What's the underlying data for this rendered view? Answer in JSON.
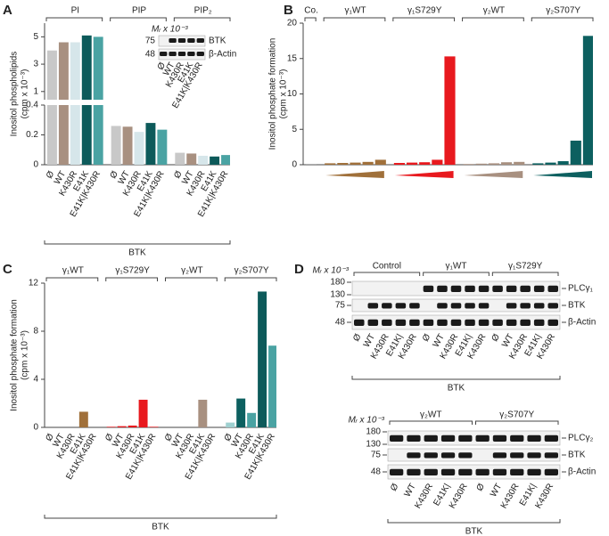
{
  "chart_data": [
    {
      "type": "bar",
      "label": "A",
      "y_label": [
        "Inositol phospholipids",
        "(cpm x 10⁻³)"
      ],
      "groups": [
        "PI",
        "PIP",
        "PIP₂"
      ],
      "categories": [
        "Ø",
        "WT",
        "K430R",
        "E41K",
        "E41K|K430R"
      ],
      "values": [
        [
          4.0,
          4.6,
          4.6,
          5.1,
          5.0
        ],
        [
          0.26,
          0.255,
          0.22,
          0.28,
          0.235
        ],
        [
          0.08,
          0.075,
          0.06,
          0.055,
          0.065
        ]
      ],
      "colors": [
        [
          "#c8c8c8",
          "#a89080",
          "#d6e6ea",
          "#0d5a5a",
          "#4aa3a3"
        ],
        [
          "#c8c8c8",
          "#a89080",
          "#d6e6ea",
          "#0d5a5a",
          "#4aa3a3"
        ],
        [
          "#c8c8c8",
          "#a89080",
          "#d6e6ea",
          "#0d5a5a",
          "#4aa3a3"
        ]
      ],
      "ylim": [
        0,
        0.4
      ],
      "yticks": [
        0,
        0.2,
        0.4
      ],
      "upper_ylim": [
        0.4,
        6
      ],
      "upper_yticks": [
        1,
        3,
        5
      ],
      "x_label": "BTK",
      "inset": {
        "unit": "Mᵣ x 10⁻³",
        "markers": [
          75,
          48
        ],
        "bands": [
          "BTK",
          "β-Actin"
        ],
        "lanes": [
          "Ø",
          "WT",
          "K430R",
          "E41K",
          "E41K|K430R"
        ]
      }
    },
    {
      "type": "bar",
      "label": "B",
      "y_label": [
        "Inositol phosphate formation",
        "(cpm x 10⁻³)"
      ],
      "groups": [
        "Co.",
        "γ₁WT",
        "γ₁S729Y",
        "γ₂WT",
        "γ₂S707Y"
      ],
      "values": [
        [
          0.1
        ],
        [
          0.2,
          0.25,
          0.3,
          0.4,
          0.7
        ],
        [
          0.25,
          0.3,
          0.35,
          0.7,
          15.3
        ],
        [
          0.1,
          0.15,
          0.2,
          0.35,
          0.4
        ],
        [
          0.2,
          0.3,
          0.5,
          3.4,
          18.2
        ]
      ],
      "colors": [
        [
          "#999999"
        ],
        [
          "#a0703a",
          "#a0703a",
          "#a0703a",
          "#a0703a",
          "#a0703a"
        ],
        [
          "#e8191e",
          "#e8191e",
          "#e8191e",
          "#e8191e",
          "#e8191e"
        ],
        [
          "#a89080",
          "#a89080",
          "#a89080",
          "#a89080",
          "#a89080"
        ],
        [
          "#0d6060",
          "#0d6060",
          "#0d6060",
          "#0d6060",
          "#0d6060"
        ]
      ],
      "ylim": [
        0,
        20
      ],
      "yticks": [
        0,
        5,
        10,
        15,
        20
      ]
    },
    {
      "type": "bar",
      "label": "C",
      "y_label": [
        "Inositol phosphate formation",
        "(cpm x 10⁻³)"
      ],
      "groups": [
        "γ₁WT",
        "γ₁S729Y",
        "γ₂WT",
        "γ₂S707Y"
      ],
      "categories": [
        "Ø",
        "WT",
        "K430R",
        "E41K",
        "E41K|K430R"
      ],
      "values": [
        [
          0,
          0,
          0,
          1.3,
          0
        ],
        [
          0.05,
          0.1,
          0.15,
          2.3,
          0.05
        ],
        [
          0,
          0,
          0,
          2.3,
          0
        ],
        [
          0.4,
          2.4,
          1.2,
          11.3,
          6.8
        ]
      ],
      "colors": [
        [
          "#a0703a",
          "#a0703a",
          "#a0703a",
          "#a0703a",
          "#a0703a"
        ],
        [
          "#e8191e",
          "#e8191e",
          "#e8191e",
          "#e8191e",
          "#e8191e"
        ],
        [
          "#a89080",
          "#a89080",
          "#a89080",
          "#a89080",
          "#a89080"
        ],
        [
          "#9fd0d0",
          "#0d6060",
          "#4aa3a3",
          "#0d5a5a",
          "#4aa3a3"
        ]
      ],
      "ylim": [
        0,
        12
      ],
      "yticks": [
        0,
        4,
        8,
        12
      ],
      "x_label": "BTK"
    }
  ],
  "blots": [
    {
      "label": "D",
      "unit": "Mᵣ x 10⁻³",
      "markers": [
        180,
        130,
        75,
        48
      ],
      "groups": [
        "Control",
        "γ₁WT",
        "γ₁S729Y"
      ],
      "bands": [
        "PLCγ₁",
        "BTK",
        "β-Actin"
      ],
      "lanes": [
        "Ø",
        "WT",
        "K430R",
        "E41K|",
        "K430R"
      ],
      "x_label": "BTK"
    },
    {
      "unit": "Mᵣ x 10⁻³",
      "markers": [
        180,
        130,
        75,
        48
      ],
      "groups": [
        "γ₂WT",
        "γ₂S707Y"
      ],
      "bands": [
        "PLCγ₂",
        "BTK",
        "β-Actin"
      ],
      "lanes": [
        "Ø",
        "WT",
        "K430R",
        "E41K|",
        "K430R"
      ],
      "x_label": "BTK"
    }
  ]
}
